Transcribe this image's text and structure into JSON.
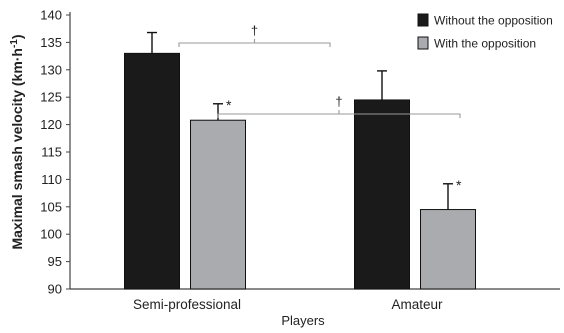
{
  "chart_data": {
    "type": "bar",
    "title": "",
    "xlabel": "Players",
    "ylabel": "Maximal smash velocity (km·h",
    "ylabel_superscript": "-1",
    "ylabel_suffix": ")",
    "categories": [
      "Semi-professional",
      "Amateur"
    ],
    "ylim": [
      90,
      140
    ],
    "yticks": [
      90,
      95,
      100,
      105,
      110,
      115,
      120,
      125,
      130,
      135,
      140
    ],
    "grid": false,
    "legend_position": "top-right",
    "series": [
      {
        "name": "Without the opposition",
        "color": "#1a1a1a",
        "values": [
          133.0,
          124.5
        ],
        "errors": [
          3.8,
          5.3
        ]
      },
      {
        "name": "With the opposition",
        "color": "#a9abaf",
        "values": [
          120.8,
          104.5
        ],
        "errors": [
          3.0,
          4.7
        ]
      }
    ],
    "annotations": {
      "within_group_marks": [
        {
          "category": 0,
          "series": 1,
          "text": "*"
        },
        {
          "category": 1,
          "series": 1,
          "text": "*"
        }
      ],
      "between_group_brackets": [
        {
          "series": 0,
          "text": "†"
        },
        {
          "series": 1,
          "text": "†"
        }
      ]
    }
  }
}
